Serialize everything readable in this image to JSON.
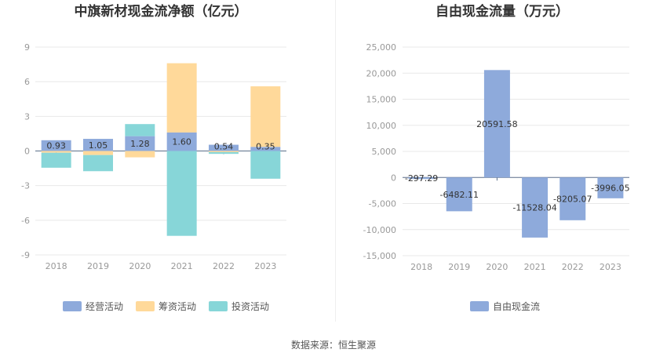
{
  "chart_data": [
    {
      "type": "bar",
      "stacked": true,
      "title": "中旗新材现金流净额（亿元）",
      "categories": [
        "2018",
        "2019",
        "2020",
        "2021",
        "2022",
        "2023"
      ],
      "ylim": [
        -9,
        9
      ],
      "yticks": [
        9,
        6,
        3,
        0,
        -3,
        -6,
        -9
      ],
      "series": [
        {
          "name": "经营活动",
          "color": "#8eaadb",
          "values": [
            0.93,
            1.05,
            1.28,
            1.6,
            0.54,
            0.35
          ],
          "labels": [
            "0.93",
            "1.05",
            "1.28",
            "1.60",
            "0.54",
            "0.35"
          ]
        },
        {
          "name": "筹资活动",
          "color": "#ffd99a",
          "values": [
            -0.15,
            -0.35,
            -0.55,
            6.0,
            -0.1,
            5.25
          ]
        },
        {
          "name": "投资活动",
          "color": "#87d6d8",
          "values": [
            -1.3,
            -1.4,
            1.05,
            -7.35,
            -0.15,
            -2.4
          ]
        }
      ],
      "legend_position": "bottom"
    },
    {
      "type": "bar",
      "title": "自由现金流量（万元）",
      "categories": [
        "2018",
        "2019",
        "2020",
        "2021",
        "2022",
        "2023"
      ],
      "ylim": [
        -15000,
        25000
      ],
      "yticks": [
        25000,
        20000,
        15000,
        10000,
        5000,
        0,
        -5000,
        -10000,
        -15000
      ],
      "ytick_labels": [
        "25,000",
        "20,000",
        "15,000",
        "10,000",
        "5,000",
        "0",
        "-5,000",
        "-10,000",
        "-15,000"
      ],
      "series": [
        {
          "name": "自由现金流",
          "color": "#8eaadb",
          "values": [
            -297.29,
            -6482.11,
            20591.58,
            -11528.04,
            -8205.07,
            -3996.05
          ],
          "labels": [
            "-297.29",
            "-6482.11",
            "20591.58",
            "-11528.04",
            "-8205.07",
            "-3996.05"
          ]
        }
      ],
      "legend_position": "bottom"
    }
  ],
  "source_text": "数据来源：恒生聚源"
}
